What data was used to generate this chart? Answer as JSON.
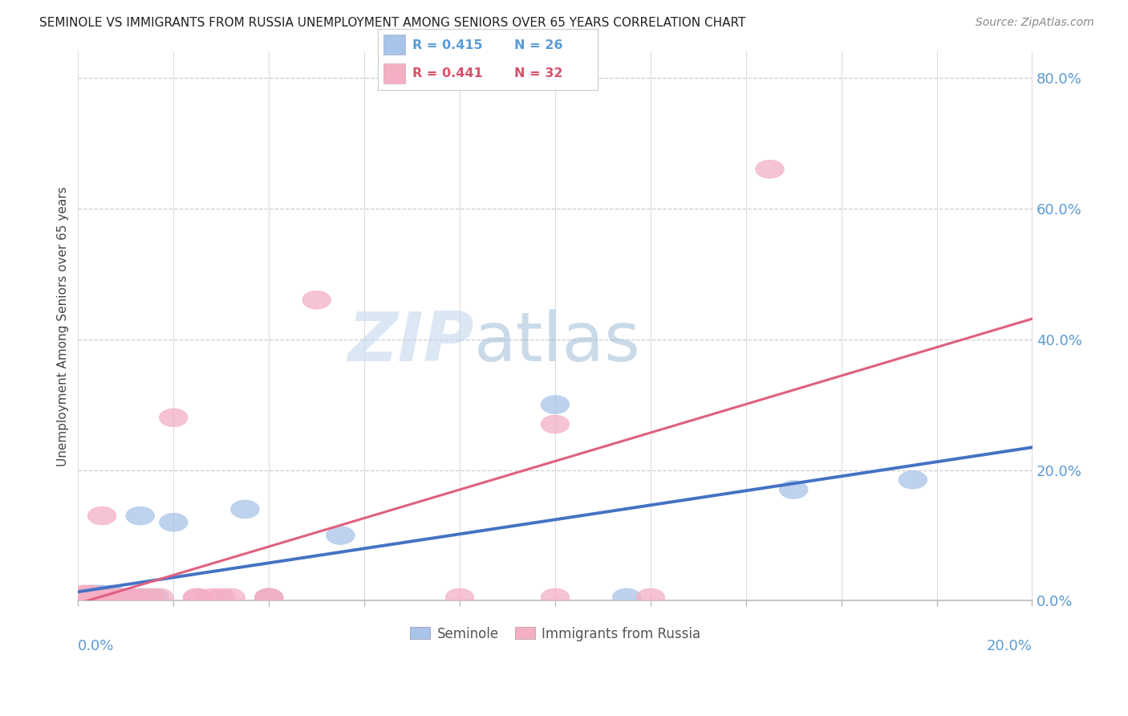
{
  "title": "SEMINOLE VS IMMIGRANTS FROM RUSSIA UNEMPLOYMENT AMONG SENIORS OVER 65 YEARS CORRELATION CHART",
  "source": "Source: ZipAtlas.com",
  "ylabel": "Unemployment Among Seniors over 65 years",
  "seminole_R": "R = 0.415",
  "seminole_N": "N = 26",
  "russia_R": "R = 0.441",
  "russia_N": "N = 32",
  "seminole_color": "#a8c4e8",
  "russia_color": "#f4afc4",
  "seminole_line_color": "#4472c4",
  "russia_line_color": "#e06080",
  "legend_label_1": "Seminole",
  "legend_label_2": "Immigrants from Russia",
  "watermark_text": "ZIPatlas",
  "seminole_x": [
    0.001,
    0.002,
    0.003,
    0.003,
    0.004,
    0.004,
    0.005,
    0.005,
    0.006,
    0.007,
    0.007,
    0.008,
    0.009,
    0.01,
    0.011,
    0.013,
    0.014,
    0.016,
    0.02,
    0.035,
    0.04,
    0.055,
    0.1,
    0.115,
    0.15,
    0.175
  ],
  "seminole_y": [
    0.005,
    0.005,
    0.005,
    0.01,
    0.005,
    0.01,
    0.005,
    0.01,
    0.005,
    0.005,
    0.01,
    0.005,
    0.005,
    0.005,
    0.005,
    0.13,
    0.005,
    0.005,
    0.12,
    0.14,
    0.005,
    0.1,
    0.3,
    0.005,
    0.17,
    0.185
  ],
  "russia_x": [
    0.001,
    0.001,
    0.002,
    0.002,
    0.003,
    0.003,
    0.004,
    0.005,
    0.005,
    0.006,
    0.007,
    0.008,
    0.009,
    0.01,
    0.011,
    0.013,
    0.015,
    0.017,
    0.02,
    0.025,
    0.025,
    0.028,
    0.03,
    0.032,
    0.04,
    0.04,
    0.05,
    0.08,
    0.1,
    0.1,
    0.12,
    0.145
  ],
  "russia_y": [
    0.005,
    0.01,
    0.005,
    0.01,
    0.005,
    0.01,
    0.005,
    0.13,
    0.005,
    0.005,
    0.005,
    0.005,
    0.005,
    0.005,
    0.005,
    0.005,
    0.005,
    0.005,
    0.28,
    0.005,
    0.005,
    0.005,
    0.005,
    0.005,
    0.005,
    0.005,
    0.46,
    0.005,
    0.27,
    0.005,
    0.005,
    0.66
  ],
  "xmin": 0.0,
  "xmax": 0.2001,
  "ymin": 0.0,
  "ymax": 0.84,
  "yticks": [
    0.0,
    0.2,
    0.4,
    0.6,
    0.8
  ],
  "ytick_labels": [
    "0.0%",
    "20.0%",
    "40.0%",
    "60.0%",
    "80.0%"
  ],
  "grid_xticks": [
    0.0,
    0.02,
    0.04,
    0.06,
    0.08,
    0.1,
    0.12,
    0.14,
    0.16,
    0.18,
    0.2
  ],
  "tick_color": "#5b9bd5",
  "title_fontsize": 11,
  "source_fontsize": 10,
  "ylabel_fontsize": 11
}
